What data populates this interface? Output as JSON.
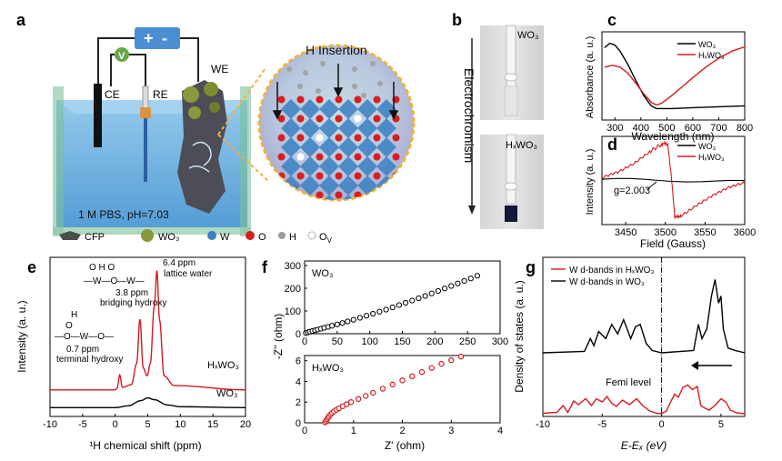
{
  "panels": {
    "a": {
      "label": "a",
      "ce": "CE",
      "re": "RE",
      "we": "WE",
      "h_insertion": "H Insertion",
      "electrolyte": "1 M PBS, pH=7.03",
      "power_plus": "+",
      "power_minus": "-",
      "voltmeter": "V",
      "legend": {
        "cfp": "CFP",
        "wo3": "WO₃",
        "w": "W",
        "o": "O",
        "h": "H",
        "ov": "O",
        "ov_sub": "V"
      }
    },
    "b": {
      "label": "b",
      "top": "WO₃",
      "bottom": "HₓWO₃",
      "arrow": "Electrochromism"
    },
    "e": {
      "peak1_value": "6.4 ppm",
      "peak1_name": "lattice water",
      "peak2_value": "3.8 ppm",
      "peak2_name": "bridging hydroxy",
      "peak3_value": "0.7 ppm",
      "peak3_name": "terminal hydroxy",
      "struct1": "O   H   O",
      "struct1b": "—W—O—W—",
      "struct2a": "H",
      "struct2b": "O",
      "struct2c": "—O—W—O—"
    }
  },
  "chart_data": [
    {
      "panel": "c",
      "type": "line",
      "xlabel": "Wavelength (nm)",
      "ylabel": "Absorbance (a. u.)",
      "xlim": [
        250,
        800
      ],
      "xticks": [
        300,
        400,
        500,
        600,
        700,
        800
      ],
      "series": [
        {
          "name": "WO₃",
          "color": "#000000",
          "x": [
            260,
            280,
            300,
            320,
            350,
            380,
            410,
            440,
            460,
            480,
            520,
            600,
            700,
            800
          ],
          "y": [
            0.82,
            0.87,
            0.85,
            0.78,
            0.63,
            0.45,
            0.28,
            0.16,
            0.13,
            0.13,
            0.13,
            0.14,
            0.15,
            0.16
          ]
        },
        {
          "name": "HₓWO₃",
          "color": "#d7191c",
          "x": [
            260,
            290,
            320,
            350,
            380,
            410,
            440,
            460,
            480,
            520,
            560,
            600,
            650,
            700,
            750,
            800
          ],
          "y": [
            0.6,
            0.62,
            0.6,
            0.53,
            0.42,
            0.3,
            0.2,
            0.17,
            0.19,
            0.28,
            0.38,
            0.48,
            0.6,
            0.7,
            0.78,
            0.83
          ]
        }
      ]
    },
    {
      "panel": "d",
      "type": "line",
      "xlabel": "Field (Gauss)",
      "ylabel": "Intensity (a. u.)",
      "xlim": [
        3420,
        3600
      ],
      "xticks": [
        3450,
        3500,
        3550,
        3600
      ],
      "annotation": "g=2.003",
      "series": [
        {
          "name": "WO₃",
          "color": "#000000",
          "x": [
            3420,
            3600
          ],
          "y": [
            0.0,
            0.0
          ]
        },
        {
          "name": "HₓWO₃",
          "color": "#d7191c",
          "x": [
            3420,
            3440,
            3460,
            3480,
            3495,
            3503,
            3508,
            3512,
            3520,
            3540,
            3560,
            3580,
            3600
          ],
          "y": [
            0.05,
            0.18,
            0.4,
            0.72,
            0.9,
            0.9,
            0.0,
            -0.95,
            -0.85,
            -0.6,
            -0.38,
            -0.2,
            -0.08
          ]
        }
      ]
    },
    {
      "panel": "e",
      "type": "line",
      "xlabel": "¹H chemical shift (ppm)",
      "ylabel": "Intensity (a. u.)",
      "xlim": [
        -10,
        20
      ],
      "xticks": [
        -10,
        -5,
        0,
        5,
        10,
        15,
        20
      ],
      "series": [
        {
          "name": "HₓWO₃",
          "color": "#d7191c",
          "x": [
            -10,
            0,
            0.3,
            0.7,
            1.1,
            2.5,
            3.3,
            3.8,
            4.3,
            4.9,
            5.4,
            6.0,
            6.4,
            6.8,
            7.5,
            9,
            20
          ],
          "y": [
            0.2,
            0.2,
            0.22,
            0.37,
            0.23,
            0.26,
            0.5,
            1.0,
            0.45,
            0.36,
            0.5,
            1.15,
            1.55,
            1.0,
            0.36,
            0.25,
            0.2
          ]
        },
        {
          "name": "WO₃",
          "color": "#000000",
          "x": [
            -10,
            0,
            2,
            4,
            5,
            6,
            8,
            10,
            20
          ],
          "y": [
            0.0,
            0.0,
            0.02,
            0.08,
            0.11,
            0.09,
            0.03,
            0.01,
            0.0
          ]
        }
      ]
    },
    {
      "panel": "f-top",
      "type": "scatter",
      "title": "WO₃",
      "ylabel": "-Z'' (ohm)",
      "xlim": [
        0,
        300
      ],
      "ylim": [
        0,
        320
      ],
      "xticks": [
        0,
        50,
        100,
        150,
        200,
        250,
        300
      ],
      "yticks": [
        0,
        100,
        200,
        300
      ],
      "series": [
        {
          "name": "WO₃",
          "color": "#000000",
          "x": [
            2,
            5,
            8,
            12,
            16,
            20,
            25,
            30,
            36,
            42,
            50,
            58,
            66,
            75,
            85,
            95,
            105,
            115,
            125,
            135,
            145,
            155,
            165,
            175,
            185,
            195,
            205,
            215,
            225,
            235,
            245,
            255,
            265
          ],
          "y": [
            3,
            6,
            9,
            12,
            15,
            18,
            22,
            26,
            30,
            35,
            41,
            47,
            54,
            61,
            70,
            79,
            88,
            97,
            106,
            116,
            126,
            136,
            146,
            156,
            166,
            177,
            188,
            199,
            210,
            221,
            232,
            243,
            255
          ]
        }
      ]
    },
    {
      "panel": "f-bottom",
      "type": "scatter",
      "title": "HₓWO₃",
      "xlabel": "Z' (ohm)",
      "xlim": [
        0,
        4
      ],
      "ylim": [
        0,
        6.5
      ],
      "xticks": [
        0,
        1,
        2,
        3,
        4
      ],
      "yticks": [
        0,
        2,
        4,
        6
      ],
      "series": [
        {
          "name": "HₓWO₃",
          "color": "#d7191c",
          "x": [
            0.42,
            0.44,
            0.46,
            0.48,
            0.5,
            0.53,
            0.56,
            0.6,
            0.65,
            0.7,
            0.78,
            0.86,
            0.95,
            1.1,
            1.25,
            1.4,
            1.6,
            1.8,
            2.0,
            2.2,
            2.4,
            2.6,
            2.8,
            3.0,
            3.2
          ],
          "y": [
            0.05,
            0.2,
            0.35,
            0.5,
            0.65,
            0.8,
            0.95,
            1.1,
            1.25,
            1.4,
            1.6,
            1.8,
            2.0,
            2.3,
            2.6,
            2.9,
            3.3,
            3.7,
            4.1,
            4.5,
            4.9,
            5.3,
            5.7,
            6.05,
            6.4
          ]
        }
      ]
    },
    {
      "panel": "g",
      "type": "line",
      "xlabel": "E-Eₓ (eV)",
      "ylabel": "Density of states (a. u.)",
      "xlim": [
        -10,
        7
      ],
      "xticks": [
        -10,
        -5,
        0,
        5
      ],
      "fermi_label": "Femi level",
      "series": [
        {
          "name": "W d-bands in HₓWO₃",
          "color": "#d7191c",
          "x": [
            -10,
            -8.8,
            -8.3,
            -7.9,
            -7.4,
            -7,
            -6.4,
            -5.9,
            -5.5,
            -5,
            -4.6,
            -4.2,
            -3.8,
            -3.3,
            -2.7,
            -2.1,
            -1.6,
            -1,
            -0.4,
            0,
            0.4,
            0.8,
            1.1,
            1.4,
            1.8,
            2.2,
            2.6,
            3.0,
            3.3,
            3.6,
            4.0,
            4.5,
            5.0,
            5.4,
            5.8,
            6.3,
            7
          ],
          "y": [
            0.03,
            0.05,
            0.2,
            0.05,
            0.3,
            0.22,
            0.35,
            0.2,
            0.35,
            0.28,
            0.4,
            0.25,
            0.18,
            0.32,
            0.22,
            0.35,
            0.2,
            0.08,
            0.03,
            0.02,
            0.08,
            0.3,
            0.45,
            0.38,
            0.6,
            0.65,
            0.55,
            0.62,
            0.2,
            0.15,
            0.1,
            0.2,
            0.35,
            0.28,
            0.1,
            0.04,
            0.02
          ]
        },
        {
          "name": "W d-bands in WO₃",
          "color": "#000000",
          "x": [
            -10,
            -6.5,
            -6,
            -5.7,
            -5.3,
            -4.7,
            -4.2,
            -3.7,
            -3.2,
            -2.6,
            -2.2,
            -1.8,
            -1.3,
            -0.8,
            0,
            2.7,
            3.1,
            3.4,
            3.8,
            4.2,
            4.5,
            4.8,
            5.0,
            5.2,
            5.6,
            6.2,
            7
          ],
          "y": [
            0.0,
            0.03,
            0.3,
            0.15,
            0.45,
            0.3,
            0.6,
            0.4,
            0.7,
            0.3,
            0.55,
            0.6,
            0.2,
            0.05,
            0.0,
            0.05,
            0.6,
            0.3,
            0.5,
            1.2,
            1.55,
            1.05,
            1.2,
            0.5,
            0.1,
            0.05,
            0.0
          ]
        }
      ]
    }
  ]
}
